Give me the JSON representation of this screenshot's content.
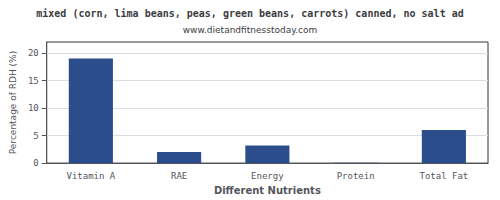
{
  "chart_data": {
    "type": "bar",
    "title": "mixed (corn, lima beans, peas, green beans, carrots) canned, no salt ad",
    "subtitle": "www.dietandfitnesstoday.com",
    "xlabel": "Different Nutrients",
    "ylabel": "Percentage of RDH (%)",
    "categories": [
      "Vitamin A",
      "RAE",
      "Energy",
      "Protein",
      "Total Fat"
    ],
    "values": [
      19.0,
      2.0,
      3.2,
      0.05,
      6.0
    ],
    "color": "#2b4d8c",
    "ylim": [
      0,
      22
    ],
    "yticks": [
      0,
      5,
      10,
      15,
      20
    ],
    "grid": true
  }
}
